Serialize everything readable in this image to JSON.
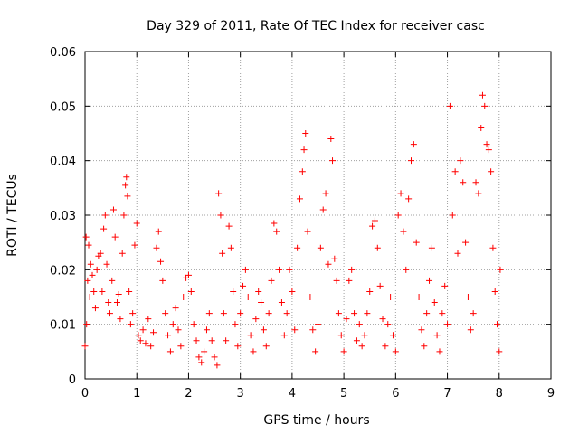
{
  "chart_data": {
    "type": "scatter",
    "title": "Day 329 of 2011, Rate Of TEC Index for receiver casc",
    "xlabel": "GPS time / hours",
    "ylabel": "ROTI / TECUs",
    "xlim": [
      0,
      9
    ],
    "ylim": [
      0,
      0.06
    ],
    "xticks": [
      0,
      1,
      2,
      3,
      4,
      5,
      6,
      7,
      8,
      9
    ],
    "yticks": [
      0,
      0.01,
      0.02,
      0.03,
      0.04,
      0.05,
      0.06
    ],
    "ytick_labels": [
      "0",
      "0.01",
      "0.02",
      "0.03",
      "0.04",
      "0.05",
      "0.06"
    ],
    "grid": true,
    "marker": "+",
    "color": "#ff0000",
    "series": [
      {
        "name": "ROTI",
        "points": [
          [
            0.0,
            0.006
          ],
          [
            0.02,
            0.026
          ],
          [
            0.03,
            0.01
          ],
          [
            0.05,
            0.018
          ],
          [
            0.07,
            0.0245
          ],
          [
            0.09,
            0.015
          ],
          [
            0.11,
            0.021
          ],
          [
            0.14,
            0.019
          ],
          [
            0.17,
            0.016
          ],
          [
            0.2,
            0.013
          ],
          [
            0.23,
            0.02
          ],
          [
            0.26,
            0.0225
          ],
          [
            0.3,
            0.023
          ],
          [
            0.33,
            0.016
          ],
          [
            0.36,
            0.0275
          ],
          [
            0.39,
            0.03
          ],
          [
            0.42,
            0.021
          ],
          [
            0.45,
            0.014
          ],
          [
            0.48,
            0.012
          ],
          [
            0.52,
            0.018
          ],
          [
            0.55,
            0.031
          ],
          [
            0.58,
            0.026
          ],
          [
            0.62,
            0.014
          ],
          [
            0.65,
            0.0155
          ],
          [
            0.68,
            0.011
          ],
          [
            0.72,
            0.023
          ],
          [
            0.75,
            0.03
          ],
          [
            0.78,
            0.0355
          ],
          [
            0.8,
            0.037
          ],
          [
            0.82,
            0.0335
          ],
          [
            0.85,
            0.016
          ],
          [
            0.88,
            0.01
          ],
          [
            0.92,
            0.012
          ],
          [
            0.96,
            0.0245
          ],
          [
            1.0,
            0.0285
          ],
          [
            1.03,
            0.008
          ],
          [
            1.07,
            0.007
          ],
          [
            1.12,
            0.009
          ],
          [
            1.17,
            0.0065
          ],
          [
            1.22,
            0.011
          ],
          [
            1.27,
            0.006
          ],
          [
            1.32,
            0.0085
          ],
          [
            1.38,
            0.024
          ],
          [
            1.42,
            0.027
          ],
          [
            1.46,
            0.0215
          ],
          [
            1.5,
            0.018
          ],
          [
            1.55,
            0.012
          ],
          [
            1.6,
            0.008
          ],
          [
            1.65,
            0.005
          ],
          [
            1.7,
            0.01
          ],
          [
            1.75,
            0.013
          ],
          [
            1.8,
            0.009
          ],
          [
            1.85,
            0.006
          ],
          [
            1.9,
            0.015
          ],
          [
            1.95,
            0.0185
          ],
          [
            2.0,
            0.019
          ],
          [
            2.05,
            0.016
          ],
          [
            2.1,
            0.01
          ],
          [
            2.15,
            0.007
          ],
          [
            2.2,
            0.004
          ],
          [
            2.25,
            0.003
          ],
          [
            2.3,
            0.005
          ],
          [
            2.35,
            0.009
          ],
          [
            2.4,
            0.012
          ],
          [
            2.45,
            0.007
          ],
          [
            2.5,
            0.004
          ],
          [
            2.55,
            0.0025
          ],
          [
            2.58,
            0.034
          ],
          [
            2.62,
            0.03
          ],
          [
            2.65,
            0.023
          ],
          [
            2.68,
            0.012
          ],
          [
            2.72,
            0.007
          ],
          [
            2.78,
            0.028
          ],
          [
            2.82,
            0.024
          ],
          [
            2.86,
            0.016
          ],
          [
            2.9,
            0.01
          ],
          [
            2.95,
            0.006
          ],
          [
            3.0,
            0.012
          ],
          [
            3.05,
            0.017
          ],
          [
            3.1,
            0.02
          ],
          [
            3.15,
            0.015
          ],
          [
            3.2,
            0.008
          ],
          [
            3.25,
            0.005
          ],
          [
            3.3,
            0.011
          ],
          [
            3.35,
            0.016
          ],
          [
            3.4,
            0.014
          ],
          [
            3.45,
            0.009
          ],
          [
            3.5,
            0.006
          ],
          [
            3.55,
            0.012
          ],
          [
            3.6,
            0.018
          ],
          [
            3.65,
            0.0285
          ],
          [
            3.7,
            0.027
          ],
          [
            3.75,
            0.02
          ],
          [
            3.8,
            0.014
          ],
          [
            3.85,
            0.008
          ],
          [
            3.9,
            0.012
          ],
          [
            3.95,
            0.02
          ],
          [
            4.0,
            0.016
          ],
          [
            4.05,
            0.009
          ],
          [
            4.1,
            0.024
          ],
          [
            4.15,
            0.033
          ],
          [
            4.2,
            0.038
          ],
          [
            4.23,
            0.042
          ],
          [
            4.26,
            0.045
          ],
          [
            4.3,
            0.027
          ],
          [
            4.35,
            0.015
          ],
          [
            4.4,
            0.009
          ],
          [
            4.45,
            0.005
          ],
          [
            4.5,
            0.01
          ],
          [
            4.55,
            0.024
          ],
          [
            4.6,
            0.031
          ],
          [
            4.65,
            0.034
          ],
          [
            4.7,
            0.021
          ],
          [
            4.75,
            0.044
          ],
          [
            4.78,
            0.04
          ],
          [
            4.82,
            0.022
          ],
          [
            4.86,
            0.018
          ],
          [
            4.9,
            0.012
          ],
          [
            4.95,
            0.008
          ],
          [
            5.0,
            0.005
          ],
          [
            5.05,
            0.011
          ],
          [
            5.1,
            0.018
          ],
          [
            5.15,
            0.02
          ],
          [
            5.2,
            0.012
          ],
          [
            5.25,
            0.007
          ],
          [
            5.3,
            0.01
          ],
          [
            5.35,
            0.006
          ],
          [
            5.4,
            0.008
          ],
          [
            5.45,
            0.012
          ],
          [
            5.5,
            0.016
          ],
          [
            5.55,
            0.028
          ],
          [
            5.6,
            0.029
          ],
          [
            5.65,
            0.024
          ],
          [
            5.7,
            0.017
          ],
          [
            5.75,
            0.011
          ],
          [
            5.8,
            0.006
          ],
          [
            5.85,
            0.01
          ],
          [
            5.9,
            0.015
          ],
          [
            5.95,
            0.008
          ],
          [
            6.0,
            0.005
          ],
          [
            6.05,
            0.03
          ],
          [
            6.1,
            0.034
          ],
          [
            6.15,
            0.027
          ],
          [
            6.2,
            0.02
          ],
          [
            6.25,
            0.033
          ],
          [
            6.3,
            0.04
          ],
          [
            6.35,
            0.043
          ],
          [
            6.4,
            0.025
          ],
          [
            6.45,
            0.015
          ],
          [
            6.5,
            0.009
          ],
          [
            6.55,
            0.006
          ],
          [
            6.6,
            0.012
          ],
          [
            6.65,
            0.018
          ],
          [
            6.7,
            0.024
          ],
          [
            6.75,
            0.014
          ],
          [
            6.8,
            0.008
          ],
          [
            6.85,
            0.005
          ],
          [
            6.9,
            0.012
          ],
          [
            6.95,
            0.017
          ],
          [
            7.0,
            0.01
          ],
          [
            7.05,
            0.05
          ],
          [
            7.1,
            0.03
          ],
          [
            7.15,
            0.038
          ],
          [
            7.2,
            0.023
          ],
          [
            7.25,
            0.04
          ],
          [
            7.3,
            0.036
          ],
          [
            7.35,
            0.025
          ],
          [
            7.4,
            0.015
          ],
          [
            7.45,
            0.009
          ],
          [
            7.5,
            0.012
          ],
          [
            7.55,
            0.036
          ],
          [
            7.6,
            0.034
          ],
          [
            7.65,
            0.046
          ],
          [
            7.68,
            0.052
          ],
          [
            7.72,
            0.05
          ],
          [
            7.76,
            0.043
          ],
          [
            7.8,
            0.042
          ],
          [
            7.84,
            0.038
          ],
          [
            7.88,
            0.024
          ],
          [
            7.92,
            0.016
          ],
          [
            7.96,
            0.01
          ],
          [
            8.0,
            0.005
          ],
          [
            8.02,
            0.02
          ]
        ]
      }
    ]
  }
}
